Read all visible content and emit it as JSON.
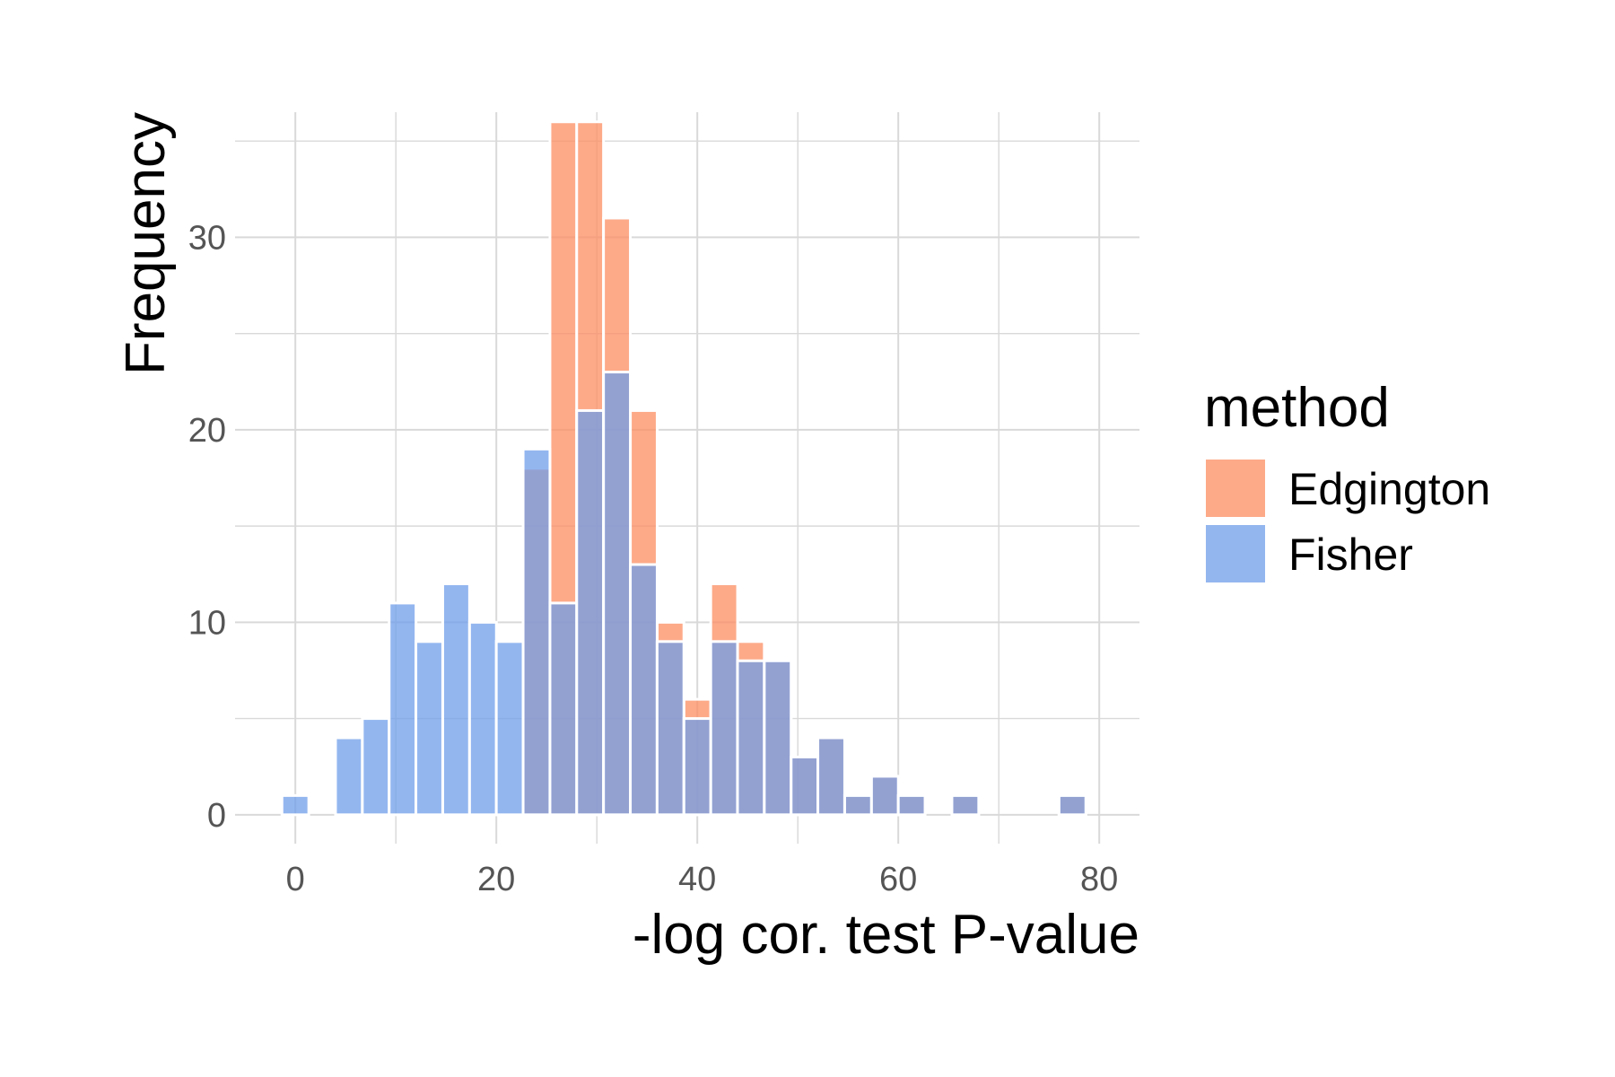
{
  "chart_data": {
    "type": "bar",
    "subtype": "overlapping histogram",
    "xlabel": "-log cor. test P-value",
    "ylabel": "Frequency",
    "xlim": [
      -6,
      84
    ],
    "ylim": [
      -1.5,
      36.5
    ],
    "xticks": [
      0,
      20,
      40,
      60,
      80
    ],
    "yticks": [
      0,
      10,
      20,
      30
    ],
    "grid": true,
    "legend": {
      "title": "method",
      "position": "right"
    },
    "bin_width": 2.67,
    "x": [
      0,
      5.33,
      8,
      10.67,
      13.33,
      16,
      18.67,
      21.33,
      24,
      26.67,
      29.33,
      32,
      34.67,
      37.33,
      40,
      42.67,
      45.33,
      48,
      50.67,
      53.33,
      56,
      58.67,
      61.33,
      66.67,
      77.33
    ],
    "series": [
      {
        "name": "Edgington",
        "color": "#FC8D62",
        "values": [
          0,
          0,
          0,
          0,
          0,
          0,
          0,
          0,
          18,
          36,
          36,
          31,
          21,
          10,
          6,
          12,
          9,
          8,
          3,
          4,
          1,
          2,
          1,
          1,
          1
        ]
      },
      {
        "name": "Fisher",
        "color": "#6F9EEA",
        "values": [
          1,
          4,
          5,
          11,
          9,
          12,
          10,
          9,
          19,
          11,
          21,
          23,
          13,
          9,
          5,
          9,
          8,
          8,
          3,
          4,
          1,
          2,
          1,
          1,
          1
        ]
      }
    ]
  }
}
